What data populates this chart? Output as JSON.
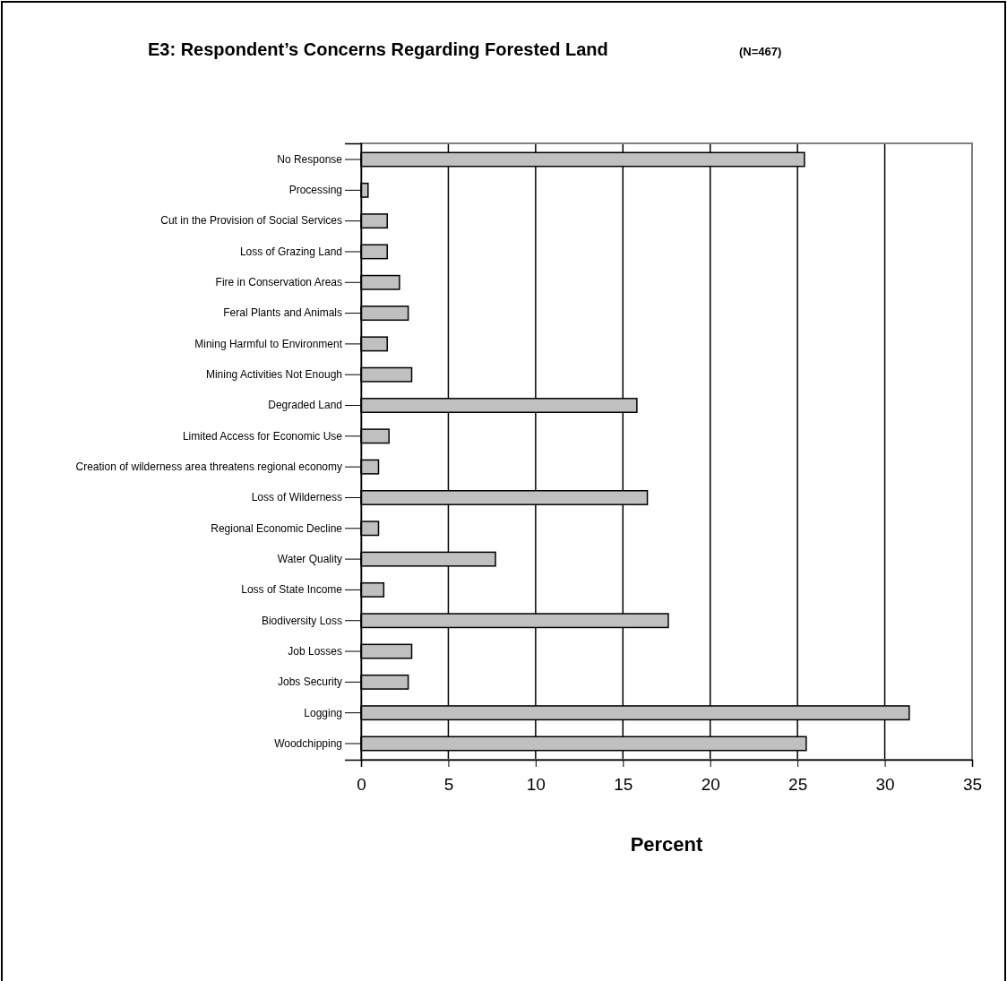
{
  "chart_data": {
    "type": "bar",
    "orientation": "horizontal",
    "title": "E3: Respondent’s Concerns Regarding Forested Land",
    "subtitle": "(N=467)",
    "xlabel": "Percent",
    "categories": [
      "No Response",
      "Processing",
      "Cut in the Provision of Social Services",
      "Loss of Grazing Land",
      "Fire in Conservation Areas",
      "Feral Plants and Animals",
      "Mining Harmful to Environment",
      "Mining Activities Not Enough",
      "Degraded Land",
      "Limited Access for Economic Use",
      "Creation of wilderness area threatens regional economy",
      "Loss of Wilderness",
      "Regional Economic Decline",
      "Water Quality",
      "Loss of State Income",
      "Biodiversity Loss",
      "Job Losses",
      "Jobs Security",
      "Logging",
      "Woodchipping"
    ],
    "values": [
      25.4,
      0.4,
      1.5,
      1.5,
      2.2,
      2.7,
      1.5,
      2.9,
      15.8,
      1.6,
      1.0,
      16.4,
      1.0,
      7.7,
      1.3,
      17.6,
      2.9,
      2.7,
      31.4,
      25.5
    ],
    "color": "#c0c0c0",
    "xlim": [
      0,
      35
    ],
    "xticks": [
      0,
      5,
      10,
      15,
      20,
      25,
      30,
      35
    ],
    "grid": "x"
  }
}
